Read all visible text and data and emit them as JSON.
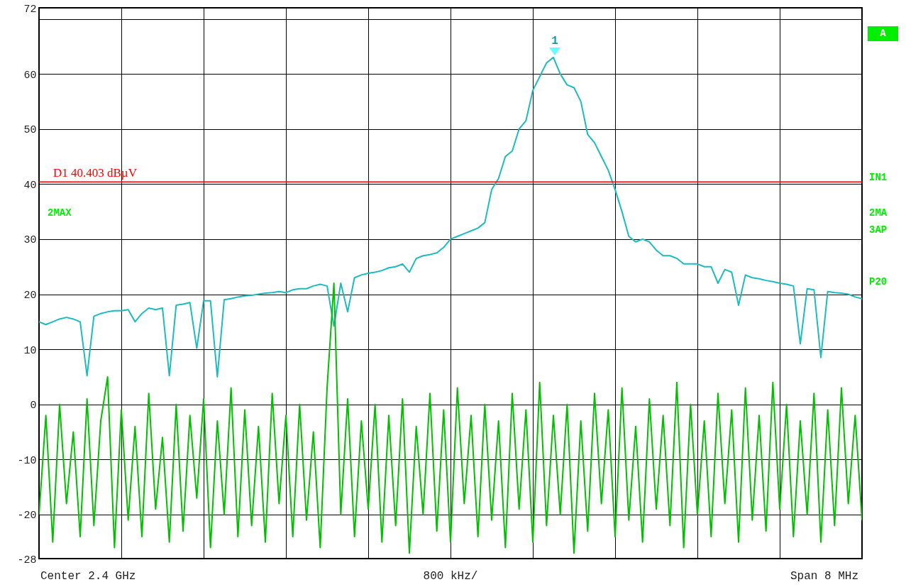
{
  "chart_data": {
    "type": "line",
    "categories": [
      null,
      null,
      null,
      null,
      null,
      null,
      null,
      null,
      null,
      null,
      null,
      null,
      null,
      null,
      null,
      null,
      null,
      null,
      null,
      null,
      null,
      null,
      null,
      null,
      null,
      null,
      null,
      null,
      null,
      null,
      null,
      null,
      null,
      null,
      null,
      null,
      null,
      null,
      null,
      null,
      null,
      null,
      null,
      null,
      null,
      null,
      null,
      null,
      null,
      null,
      null,
      null,
      null,
      null,
      null,
      null,
      null,
      null,
      null,
      null,
      null,
      null,
      null,
      null,
      null,
      null,
      null,
      null,
      null,
      null,
      null,
      null,
      null,
      null,
      null,
      null,
      null,
      null,
      null,
      null,
      null,
      null,
      null,
      null,
      null,
      null,
      null,
      null,
      null,
      null,
      null,
      null,
      null,
      null,
      null,
      null,
      null,
      null,
      null,
      null,
      null,
      null,
      null,
      null,
      null,
      null,
      null,
      null,
      null,
      null,
      null,
      null,
      null,
      null,
      null,
      null,
      null,
      null,
      null,
      null,
      null
    ],
    "series": [
      {
        "color": "#1bbcc0",
        "values": [
          15,
          14.5,
          15,
          15.5,
          15.8,
          15.5,
          15,
          5.2,
          16,
          16.5,
          16.8,
          17,
          17,
          17.2,
          15,
          16.5,
          17.5,
          17.2,
          17.5,
          5.2,
          18,
          18.2,
          18.5,
          10.2,
          18.8,
          18.8,
          5,
          19,
          19.2,
          19.5,
          19.7,
          19.8,
          20,
          20.2,
          20.3,
          20.5,
          20.3,
          20.8,
          21,
          21,
          21.5,
          21.8,
          21.5,
          14.2,
          22,
          16.8,
          23,
          23.5,
          23.8,
          24,
          24.3,
          24.8,
          25,
          25.5,
          24,
          26.5,
          27,
          27.2,
          27.5,
          28.5,
          30,
          30.5,
          31,
          31.5,
          32,
          33,
          39,
          41,
          45,
          46,
          50,
          51.5,
          57,
          59.5,
          62,
          63,
          60,
          58,
          57.5,
          55,
          49,
          47.5,
          45,
          42.5,
          39,
          35,
          30.5,
          29.5,
          30,
          29.5,
          28,
          27,
          27,
          26.5,
          25.5,
          25.5,
          25.5,
          25,
          25,
          22,
          24.5,
          24,
          18,
          23.5,
          23,
          22.8,
          22.5,
          22.3,
          22,
          21.8,
          21.5,
          11,
          21,
          20.8,
          8.5,
          20.5,
          20.3,
          20.2,
          20,
          19.5,
          19.2
        ]
      },
      {
        "color": "#00c000",
        "values": [
          -20,
          -2,
          -25,
          0,
          -18,
          -5,
          -24,
          1,
          -22,
          -3,
          5,
          -26,
          -1,
          -21,
          -4,
          -24,
          2,
          -19,
          -6,
          -25,
          0,
          -23,
          -2,
          -17,
          1,
          -26,
          -3,
          -20,
          3,
          -24,
          -1,
          -22,
          -4,
          -25,
          2,
          -18,
          -2,
          -24,
          0,
          -21,
          -5,
          -26,
          3,
          22,
          -20,
          1,
          -24,
          -3,
          -19,
          0,
          -25,
          -2,
          -22,
          1,
          -27,
          -4,
          -20,
          2,
          -23,
          -1,
          -25,
          3,
          -18,
          -2,
          -24,
          0,
          -21,
          -3,
          -26,
          2,
          -19,
          -1,
          -25,
          4,
          -22,
          -2,
          -20,
          0,
          -27,
          -3,
          -23,
          2,
          -18,
          -1,
          -24,
          3,
          -21,
          -4,
          -25,
          1,
          -19,
          -2,
          -22,
          4,
          -26,
          0,
          -20,
          -3,
          -24,
          2,
          -18,
          -1,
          -25,
          3,
          -21,
          -2,
          -23,
          4,
          -19,
          0,
          -24,
          -3,
          -20,
          2,
          -25,
          -1,
          -22,
          3,
          -18,
          -2,
          -21
        ]
      }
    ],
    "ylim": [
      -28,
      72
    ],
    "yticks": [
      -28,
      -20,
      -10,
      0,
      10,
      20,
      30,
      40,
      50,
      60,
      {
        "value": 70,
        "label": null
      },
      72
    ],
    "grid": true,
    "tick_labels": "y",
    "line_style": "solid",
    "ref_lines": [
      {
        "axis": "y",
        "value": 40.403,
        "label": "D1 40.403 dBµV",
        "color": "#ff0000"
      }
    ],
    "annotations": [
      "Center 2.4 GHz",
      "800 kHz/",
      "Span 8 MHz",
      "2MAX",
      "1",
      "A",
      "IN1",
      "2MA",
      "3AP",
      "P20"
    ]
  }
}
